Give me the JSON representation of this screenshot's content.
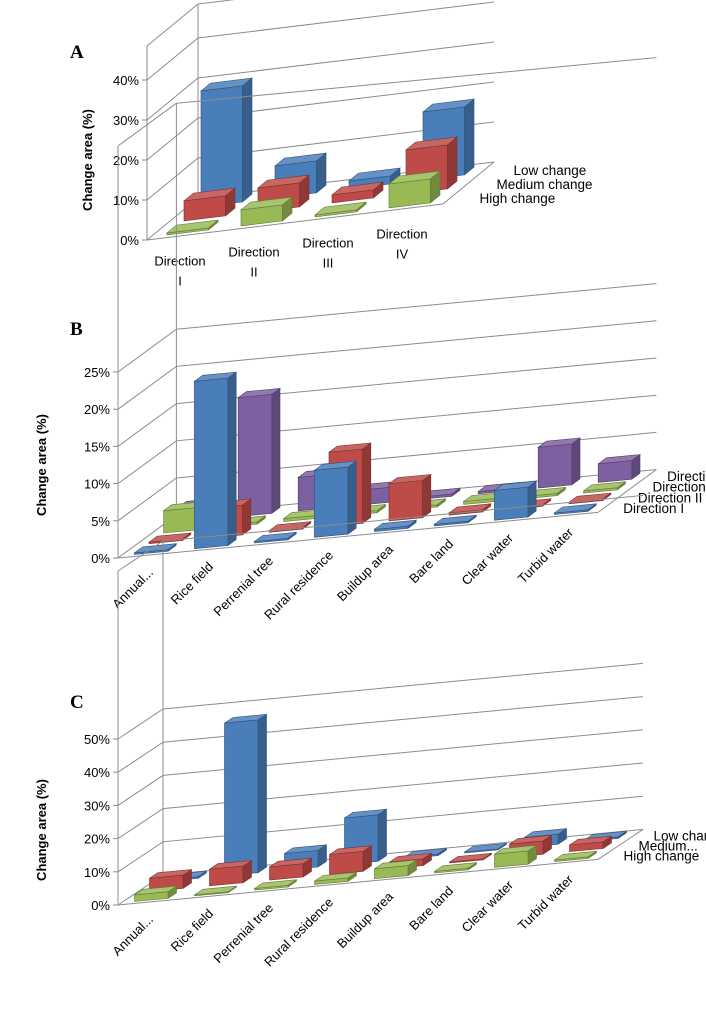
{
  "colors": {
    "blue": "#4a7ebb",
    "red": "#be4b48",
    "green": "#98b954",
    "purple": "#7d60a0",
    "grid": "#8c8c8c"
  },
  "chart_data": [
    {
      "panel": "A",
      "type": "bar",
      "style": "3d-column",
      "ylabel": "Change  area (%)",
      "ylim": [
        0,
        40
      ],
      "yticks": [
        "0%",
        "10%",
        "20%",
        "30%",
        "40%"
      ],
      "categories": [
        [
          "Direction",
          "I"
        ],
        [
          "Direction",
          "II"
        ],
        [
          "Direction",
          "III"
        ],
        [
          "Direction",
          "IV"
        ]
      ],
      "series": [
        {
          "name": "High change",
          "color": "green",
          "values": [
            0.5,
            4,
            0.5,
            6
          ]
        },
        {
          "name": "Medium change",
          "color": "red",
          "values": [
            5,
            6,
            2,
            11
          ]
        },
        {
          "name": "Low change",
          "color": "blue",
          "values": [
            29,
            8,
            2,
            17
          ]
        }
      ],
      "grid": true,
      "legend": "depth-axis-right"
    },
    {
      "panel": "B",
      "type": "bar",
      "style": "3d-column",
      "ylabel": "Change  area (%)",
      "ylim": [
        0,
        25
      ],
      "yticks": [
        "0%",
        "5%",
        "10%",
        "15%",
        "20%",
        "25%"
      ],
      "categories": [
        "Annual...",
        "Rice field",
        "Perrenial tree",
        "Rural residence",
        "Buildup area",
        "Bare land",
        "Clear water",
        "Turbid water"
      ],
      "series": [
        {
          "name": "Direction I",
          "color": "blue",
          "values": [
            0.2,
            22.5,
            0.2,
            9,
            0.3,
            0.2,
            4,
            0.2
          ]
        },
        {
          "name": "Direction II",
          "color": "red",
          "values": [
            0.2,
            4,
            0.2,
            10,
            5,
            0.3,
            0.2,
            0.2
          ]
        },
        {
          "name": "Direction III",
          "color": "green",
          "values": [
            3,
            0.3,
            0.4,
            0.3,
            0.3,
            0.4,
            0.3,
            0.3
          ]
        },
        {
          "name": "Direction IV",
          "color": "purple",
          "values": [
            2,
            16,
            4.5,
            2,
            0.3,
            0.3,
            5.5,
            2.5
          ]
        }
      ],
      "grid": true,
      "legend": "depth-axis-right"
    },
    {
      "panel": "C",
      "type": "bar",
      "style": "3d-column",
      "ylabel": "Change  area (%)",
      "ylim": [
        0,
        50
      ],
      "yticks": [
        "0%",
        "10%",
        "20%",
        "30%",
        "40%",
        "50%"
      ],
      "categories": [
        "Annual...",
        "Rice field",
        "Perrenial tree",
        "Rural residence",
        "Buildup area",
        "Bare land",
        "Clear water",
        "Turbid water"
      ],
      "series": [
        {
          "name": "High change",
          "color": "green",
          "values": [
            2,
            0.3,
            0.5,
            1,
            3,
            0.5,
            4,
            0.5
          ]
        },
        {
          "name": "Medium...",
          "color": "red",
          "values": [
            4,
            5,
            4,
            6,
            2,
            0.3,
            4,
            2
          ]
        },
        {
          "name": "Low change",
          "color": "blue",
          "values": [
            0.5,
            46,
            5,
            14,
            0.5,
            0.3,
            3,
            0.5
          ]
        }
      ],
      "grid": true,
      "legend": "depth-axis-right"
    }
  ]
}
